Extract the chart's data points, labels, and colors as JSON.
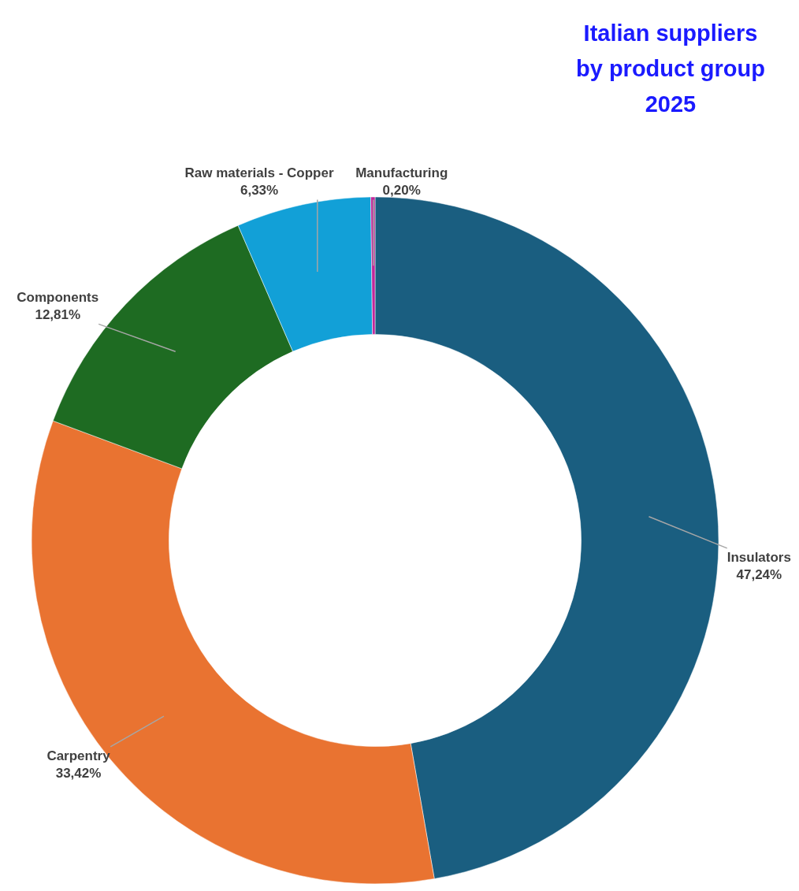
{
  "chart_data": {
    "type": "donut",
    "title": "Italian suppliers by product group 2025",
    "categories": [
      "Insulators",
      "Carpentry",
      "Components",
      "Raw materials - Copper",
      "Manufacturing"
    ],
    "values": [
      47.24,
      33.42,
      12.81,
      6.33,
      0.2
    ],
    "colors": [
      "#1a5e80",
      "#e97331",
      "#1e6b22",
      "#12a0d7",
      "#c0279a"
    ],
    "value_labels": [
      "47,24%",
      "33,42%",
      "12,81%",
      "6,33%",
      "0,20%"
    ]
  }
}
